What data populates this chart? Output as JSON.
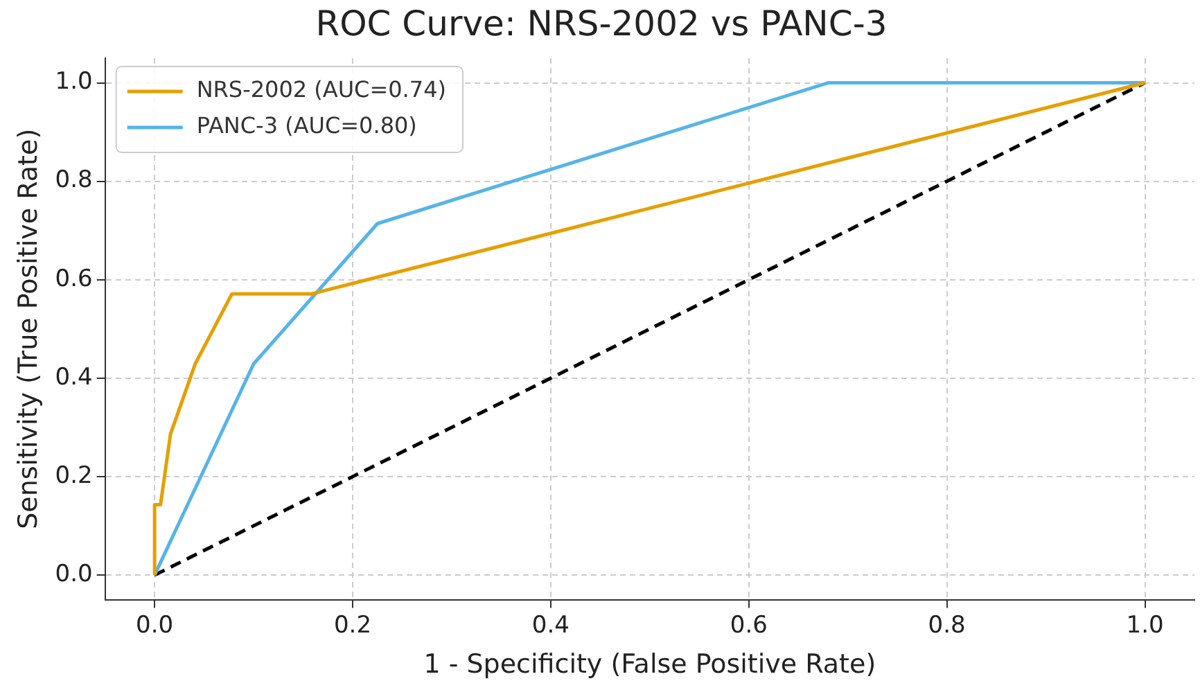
{
  "chart_data": {
    "type": "line",
    "title": "ROC Curve: NRS-2002 vs PANC-3",
    "xlabel": "1 - Specificity (False Positive Rate)",
    "ylabel": "Sensitivity (True Positive Rate)",
    "series": [
      {
        "name": "NRS-2002 (AUC=0.74)",
        "color": "#e69f00",
        "x": [
          0,
          0,
          0.006,
          0.016,
          0.041,
          0.078,
          0.158,
          1
        ],
        "values": [
          0,
          0.143,
          0.143,
          0.286,
          0.429,
          0.571,
          0.571,
          1
        ]
      },
      {
        "name": "PANC-3 (AUC=0.80)",
        "color": "#56b4e9",
        "x": [
          0,
          0.1,
          0.225,
          0.68,
          1
        ],
        "values": [
          0,
          0.429,
          0.714,
          1,
          1
        ]
      },
      {
        "color": "#000000",
        "line_style": "dashed",
        "x": [
          0,
          1
        ],
        "values": [
          0,
          1
        ]
      }
    ],
    "xlim": [
      -0.05,
      1.05
    ],
    "ylim": [
      -0.05,
      1.05
    ],
    "xticks": [
      {
        "value": 0,
        "label": "0.0"
      },
      {
        "value": 0.2,
        "label": "0.2"
      },
      {
        "value": 0.4,
        "label": "0.4"
      },
      {
        "value": 0.6,
        "label": "0.6"
      },
      {
        "value": 0.8,
        "label": "0.8"
      },
      {
        "value": 1,
        "label": "1.0"
      }
    ],
    "yticks": [
      {
        "value": 0,
        "label": "0.0"
      },
      {
        "value": 0.2,
        "label": "0.2"
      },
      {
        "value": 0.4,
        "label": "0.4"
      },
      {
        "value": 0.6,
        "label": "0.6"
      },
      {
        "value": 0.8,
        "label": "0.8"
      },
      {
        "value": 1,
        "label": "1.0"
      }
    ],
    "grid": true,
    "legend": "top left",
    "marker": "none"
  }
}
